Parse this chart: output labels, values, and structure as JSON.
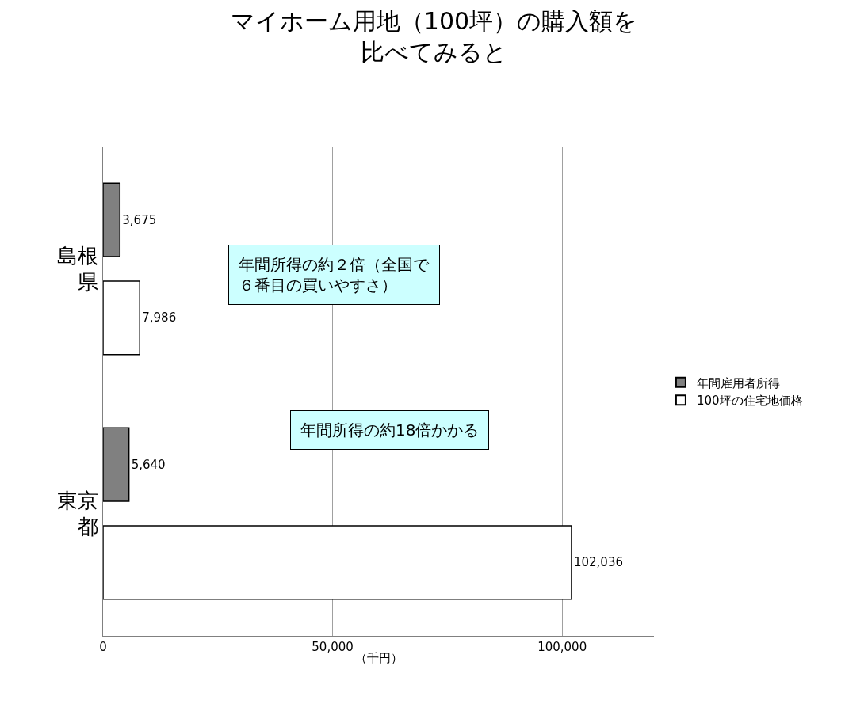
{
  "chart_data": {
    "type": "bar",
    "orientation": "horizontal",
    "title": "マイホーム用地（100坪）の購入額を比べてみると",
    "xlabel": "（千円）",
    "categories": [
      "島根県",
      "東京都"
    ],
    "series": [
      {
        "name": "年間雇用者所得",
        "color": "#808080",
        "values": [
          3675,
          5640
        ],
        "value_labels": [
          "3,675",
          "5,640"
        ]
      },
      {
        "name": "100坪の住宅地価格",
        "color": "#ffffff",
        "values": [
          7986,
          102036
        ],
        "value_labels": [
          "7,986",
          "102,036"
        ]
      }
    ],
    "xlim": [
      0,
      120000
    ],
    "xticks": [
      0,
      {
        "value": 50000,
        "label": "50,000"
      },
      {
        "value": 100000,
        "label": "100,000"
      }
    ],
    "grid": "x",
    "legend": "right",
    "annotations": [
      "年間所得の約２倍（全国で６番目の買いやすさ）",
      "年間所得の約18倍かかる"
    ]
  }
}
